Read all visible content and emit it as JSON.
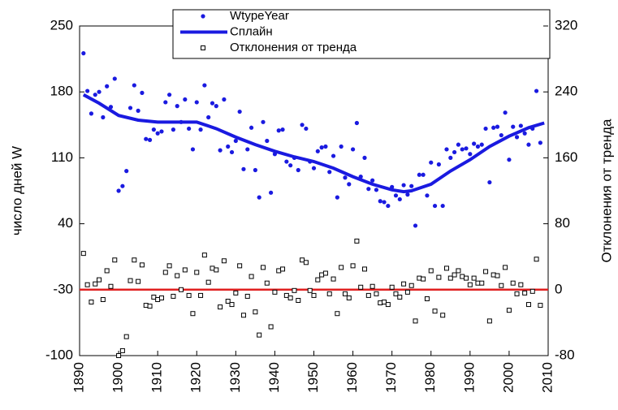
{
  "chart_data": {
    "type": "scatter",
    "ylabel": "число дней W",
    "y2label": "Отклонения от тренда",
    "xlim": [
      1890,
      2010
    ],
    "xticks": [
      1890,
      1900,
      1910,
      1920,
      1930,
      1940,
      1950,
      1960,
      1970,
      1980,
      1990,
      2000,
      2010
    ],
    "ylim": [
      -100,
      250
    ],
    "yticks": [
      -100,
      -30,
      40,
      110,
      180,
      250
    ],
    "y2lim": [
      -80,
      320
    ],
    "y2ticks": [
      -80,
      0,
      80,
      160,
      240,
      320
    ],
    "legend": "top",
    "hline": {
      "axis": "y2",
      "value": 0,
      "color": "#e02020"
    },
    "series": [
      {
        "name": "WtypeYear",
        "kind": "dots",
        "color": "#1a1ae0",
        "x": [
          1891,
          1892,
          1893,
          1894,
          1895,
          1896,
          1897,
          1898,
          1899,
          1900,
          1901,
          1902,
          1903,
          1904,
          1905,
          1906,
          1907,
          1908,
          1909,
          1910,
          1911,
          1912,
          1913,
          1914,
          1915,
          1916,
          1917,
          1918,
          1919,
          1920,
          1921,
          1922,
          1923,
          1924,
          1925,
          1926,
          1927,
          1928,
          1929,
          1930,
          1931,
          1932,
          1933,
          1934,
          1935,
          1936,
          1937,
          1938,
          1939,
          1940,
          1941,
          1942,
          1943,
          1944,
          1945,
          1946,
          1947,
          1948,
          1949,
          1950,
          1951,
          1952,
          1953,
          1954,
          1955,
          1956,
          1957,
          1958,
          1959,
          1960,
          1961,
          1962,
          1963,
          1964,
          1965,
          1966,
          1967,
          1968,
          1969,
          1970,
          1971,
          1972,
          1973,
          1974,
          1975,
          1976,
          1977,
          1978,
          1979,
          1980,
          1981,
          1982,
          1983,
          1984,
          1985,
          1986,
          1987,
          1988,
          1989,
          1990,
          1991,
          1992,
          1993,
          1994,
          1995,
          1996,
          1997,
          1998,
          1999,
          2000,
          2001,
          2002,
          2003,
          2004,
          2005,
          2006,
          2007,
          2008
        ],
        "values": [
          221,
          181,
          157,
          177,
          180,
          153,
          186,
          164,
          194,
          75,
          80,
          96,
          163,
          187,
          160,
          179,
          130,
          129,
          140,
          136,
          138,
          169,
          177,
          140,
          165,
          148,
          172,
          141,
          119,
          169,
          140,
          187,
          153,
          168,
          165,
          118,
          172,
          122,
          116,
          128,
          159,
          98,
          119,
          142,
          97,
          68,
          148,
          128,
          73,
          114,
          139,
          140,
          106,
          102,
          110,
          97,
          145,
          141,
          106,
          99,
          117,
          121,
          122,
          95,
          112,
          68,
          122,
          89,
          82,
          119,
          147,
          90,
          110,
          77,
          86,
          76,
          64,
          63,
          59,
          79,
          70,
          66,
          81,
          71,
          80,
          38,
          92,
          92,
          70,
          105,
          59,
          103,
          59,
          119,
          110,
          116,
          124,
          119,
          120,
          114,
          125,
          122,
          124,
          141,
          84,
          142,
          143,
          134,
          158,
          108,
          143,
          132,
          144,
          136,
          124,
          141,
          181,
          126
        ]
      },
      {
        "name": "Сплайн",
        "kind": "line",
        "color": "#1a1ae0",
        "x": [
          1891,
          1895,
          1900,
          1905,
          1910,
          1915,
          1920,
          1925,
          1930,
          1935,
          1940,
          1945,
          1950,
          1955,
          1960,
          1965,
          1970,
          1973,
          1975,
          1980,
          1985,
          1990,
          1995,
          2000,
          2005,
          2009
        ],
        "values": [
          177,
          168,
          155,
          150,
          148,
          148,
          148,
          141,
          132,
          124,
          117,
          111,
          106,
          99,
          90,
          82,
          76,
          74,
          75,
          82,
          96,
          108,
          122,
          133,
          142,
          147
        ]
      },
      {
        "name": "Отклонения от тренда",
        "kind": "squares",
        "color": "#000000",
        "axis": "y2",
        "x": [
          1891,
          1892,
          1893,
          1894,
          1895,
          1896,
          1897,
          1898,
          1899,
          1900,
          1901,
          1902,
          1903,
          1904,
          1905,
          1906,
          1907,
          1908,
          1909,
          1910,
          1911,
          1912,
          1913,
          1914,
          1915,
          1916,
          1917,
          1918,
          1919,
          1920,
          1921,
          1922,
          1923,
          1924,
          1925,
          1926,
          1927,
          1928,
          1929,
          1930,
          1931,
          1932,
          1933,
          1934,
          1935,
          1936,
          1937,
          1938,
          1939,
          1940,
          1941,
          1942,
          1943,
          1944,
          1945,
          1946,
          1947,
          1948,
          1949,
          1950,
          1951,
          1952,
          1953,
          1954,
          1955,
          1956,
          1957,
          1958,
          1959,
          1960,
          1961,
          1962,
          1963,
          1964,
          1965,
          1966,
          1967,
          1968,
          1969,
          1970,
          1971,
          1972,
          1973,
          1974,
          1975,
          1976,
          1977,
          1978,
          1979,
          1980,
          1981,
          1982,
          1983,
          1984,
          1985,
          1986,
          1987,
          1988,
          1989,
          1990,
          1991,
          1992,
          1993,
          1994,
          1995,
          1996,
          1997,
          1998,
          1999,
          2000,
          2001,
          2002,
          2003,
          2004,
          2005,
          2006,
          2007,
          2008
        ],
        "values": [
          44,
          6,
          -15,
          7,
          12,
          -12,
          23,
          4,
          36,
          -80,
          -74,
          -57,
          11,
          36,
          10,
          30,
          -19,
          -20,
          -9,
          -12,
          -10,
          21,
          29,
          -8,
          17,
          0,
          24,
          -7,
          -29,
          21,
          -7,
          42,
          9,
          26,
          24,
          -21,
          35,
          -14,
          -18,
          -4,
          29,
          -31,
          -8,
          16,
          -27,
          -55,
          27,
          8,
          -45,
          -3,
          23,
          25,
          -7,
          -10,
          -1,
          -13,
          36,
          33,
          -1,
          -7,
          12,
          18,
          20,
          -5,
          13,
          -29,
          27,
          -5,
          -10,
          29,
          59,
          3,
          25,
          -7,
          4,
          -5,
          -16,
          -15,
          -18,
          3,
          -5,
          -9,
          7,
          -3,
          5,
          -38,
          14,
          13,
          -11,
          23,
          -26,
          15,
          -31,
          26,
          14,
          18,
          23,
          16,
          14,
          6,
          14,
          8,
          8,
          22,
          -38,
          18,
          17,
          5,
          27,
          -25,
          8,
          -5,
          6,
          -4,
          -18,
          -2,
          37,
          -19
        ]
      }
    ]
  }
}
